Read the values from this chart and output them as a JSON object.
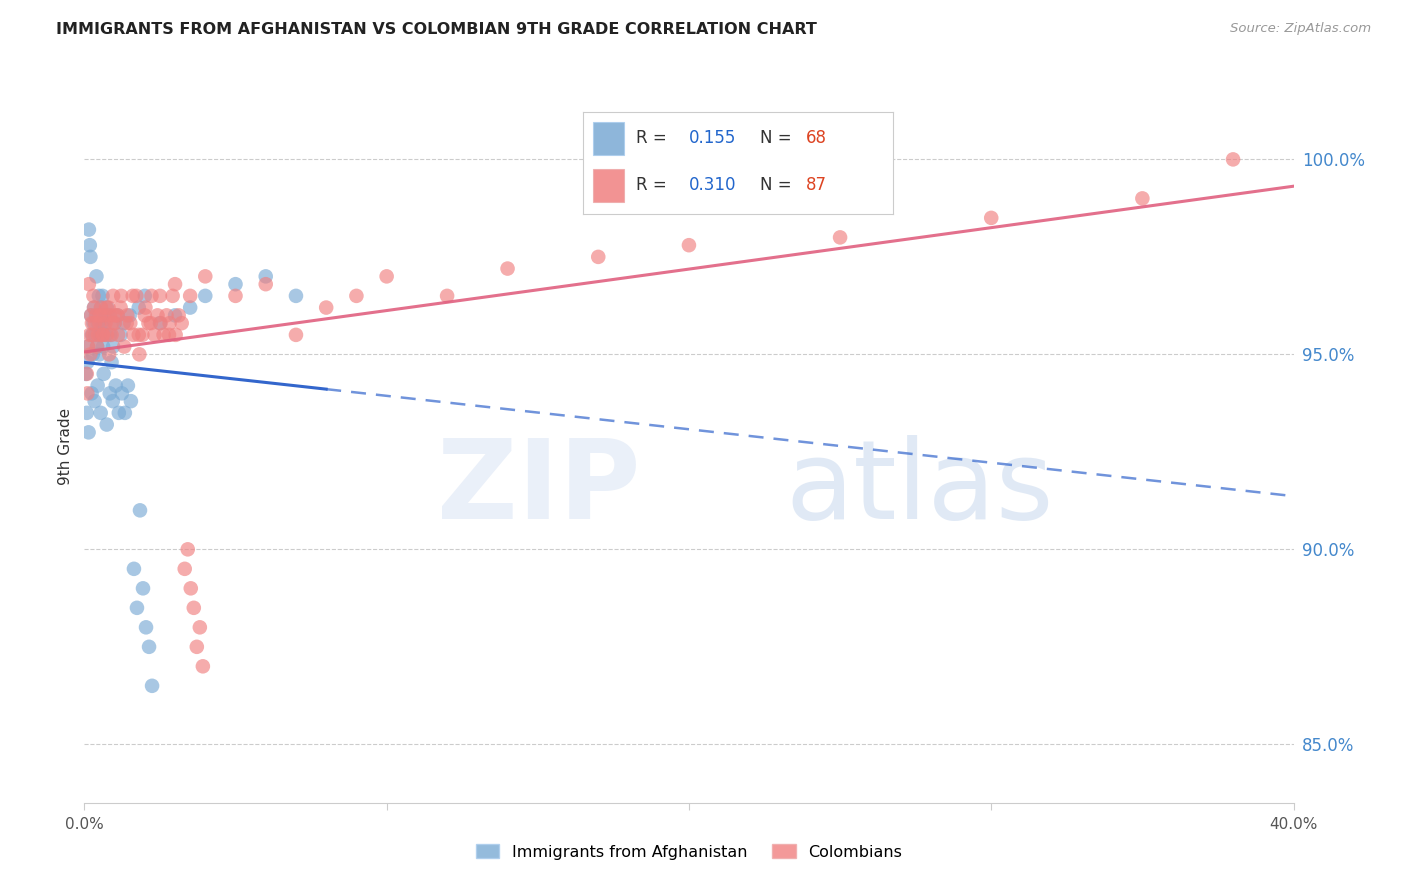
{
  "title": "IMMIGRANTS FROM AFGHANISTAN VS COLOMBIAN 9TH GRADE CORRELATION CHART",
  "source": "Source: ZipAtlas.com",
  "ylabel": "9th Grade",
  "y_ticks": [
    85.0,
    90.0,
    95.0,
    100.0
  ],
  "x_min": 0.0,
  "x_max": 40.0,
  "y_min": 83.5,
  "y_max": 101.8,
  "afghanistan_R": 0.155,
  "afghanistan_N": 68,
  "colombian_R": 0.31,
  "colombian_N": 87,
  "afghanistan_color": "#7aaad4",
  "colombian_color": "#f08080",
  "afghanistan_trend_color": "#3366cc",
  "colombian_trend_color": "#e06080",
  "afg_line_solid_end": 8.0,
  "watermark_zip": "ZIP",
  "watermark_atlas": "atlas",
  "legend_label_afg": "Immigrants from Afghanistan",
  "legend_label_col": "Colombians",
  "afghanistan_x": [
    0.05,
    0.1,
    0.12,
    0.15,
    0.18,
    0.2,
    0.22,
    0.25,
    0.28,
    0.3,
    0.32,
    0.35,
    0.38,
    0.4,
    0.42,
    0.45,
    0.48,
    0.5,
    0.52,
    0.55,
    0.58,
    0.6,
    0.62,
    0.65,
    0.68,
    0.7,
    0.75,
    0.8,
    0.85,
    0.9,
    0.95,
    1.0,
    1.1,
    1.2,
    1.3,
    1.5,
    1.8,
    2.0,
    2.5,
    3.0,
    3.5,
    4.0,
    5.0,
    6.0,
    7.0,
    0.08,
    0.14,
    0.24,
    0.34,
    0.44,
    0.54,
    0.64,
    0.74,
    0.84,
    0.94,
    1.04,
    1.14,
    1.24,
    1.34,
    1.44,
    1.54,
    1.64,
    1.74,
    1.84,
    1.94,
    2.04,
    2.14,
    2.24
  ],
  "afghanistan_y": [
    94.5,
    94.8,
    95.2,
    98.2,
    97.8,
    97.5,
    96.0,
    95.5,
    95.0,
    95.8,
    96.2,
    95.5,
    96.0,
    97.0,
    95.2,
    95.8,
    96.5,
    95.0,
    95.5,
    96.2,
    95.8,
    96.5,
    95.2,
    95.8,
    96.0,
    95.5,
    96.2,
    96.0,
    95.5,
    94.8,
    95.2,
    95.8,
    96.0,
    95.5,
    95.8,
    96.0,
    96.2,
    96.5,
    95.8,
    96.0,
    96.2,
    96.5,
    96.8,
    97.0,
    96.5,
    93.5,
    93.0,
    94.0,
    93.8,
    94.2,
    93.5,
    94.5,
    93.2,
    94.0,
    93.8,
    94.2,
    93.5,
    94.0,
    93.5,
    94.2,
    93.8,
    89.5,
    88.5,
    91.0,
    89.0,
    88.0,
    87.5,
    86.5
  ],
  "colombian_x": [
    0.08,
    0.12,
    0.15,
    0.18,
    0.22,
    0.25,
    0.28,
    0.32,
    0.35,
    0.4,
    0.45,
    0.5,
    0.55,
    0.6,
    0.65,
    0.7,
    0.75,
    0.8,
    0.85,
    0.9,
    0.95,
    1.0,
    1.1,
    1.2,
    1.4,
    1.6,
    1.8,
    2.0,
    2.2,
    2.5,
    2.8,
    3.0,
    3.5,
    4.0,
    5.0,
    6.0,
    7.0,
    8.0,
    9.0,
    10.0,
    12.0,
    14.0,
    17.0,
    20.0,
    25.0,
    30.0,
    35.0,
    38.0,
    0.1,
    0.2,
    0.3,
    0.42,
    0.52,
    0.62,
    0.72,
    0.82,
    0.92,
    1.02,
    1.12,
    1.22,
    1.32,
    1.42,
    1.52,
    1.62,
    1.72,
    1.82,
    1.92,
    2.02,
    2.12,
    2.22,
    2.32,
    2.42,
    2.52,
    2.62,
    2.72,
    2.82,
    2.92,
    3.02,
    3.12,
    3.22,
    3.32,
    3.42,
    3.52,
    3.62,
    3.72,
    3.82,
    3.92
  ],
  "colombian_y": [
    94.5,
    95.2,
    96.8,
    95.5,
    96.0,
    95.8,
    95.5,
    96.2,
    95.8,
    96.0,
    95.5,
    95.8,
    96.2,
    95.5,
    96.0,
    95.8,
    95.5,
    96.2,
    96.0,
    95.5,
    96.5,
    95.8,
    96.0,
    96.2,
    95.8,
    96.5,
    95.5,
    96.0,
    95.8,
    96.5,
    95.5,
    96.8,
    96.5,
    97.0,
    96.5,
    96.8,
    95.5,
    96.2,
    96.5,
    97.0,
    96.5,
    97.2,
    97.5,
    97.8,
    98.0,
    98.5,
    99.0,
    100.0,
    94.0,
    95.0,
    96.5,
    95.2,
    96.0,
    95.5,
    96.2,
    95.0,
    95.8,
    96.0,
    95.5,
    96.5,
    95.2,
    96.0,
    95.8,
    95.5,
    96.5,
    95.0,
    95.5,
    96.2,
    95.8,
    96.5,
    95.5,
    96.0,
    95.8,
    95.5,
    96.0,
    95.8,
    96.5,
    95.5,
    96.0,
    95.8,
    89.5,
    90.0,
    89.0,
    88.5,
    87.5,
    88.0,
    87.0
  ]
}
